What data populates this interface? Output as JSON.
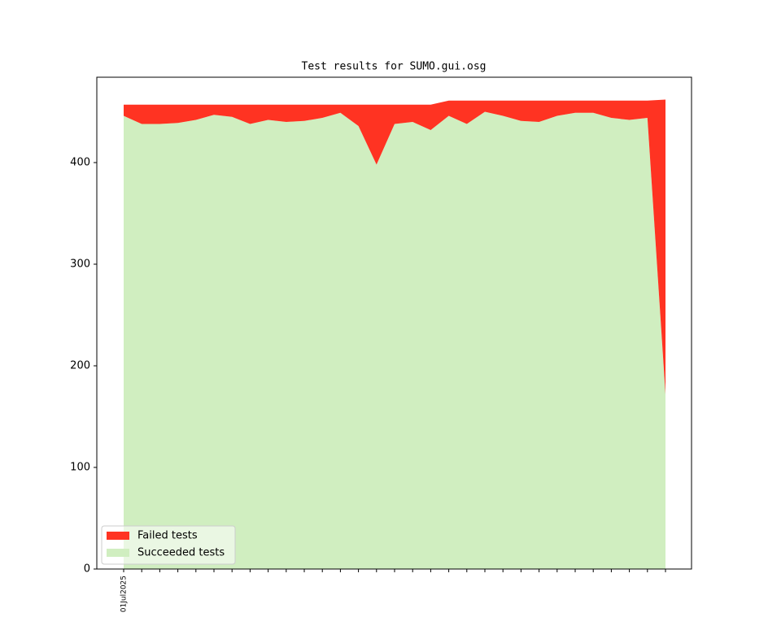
{
  "chart_data": {
    "type": "stacked_area",
    "title": "Test results for SUMO.gui.osg",
    "categories": [
      "01Jul2025",
      null,
      null,
      null,
      null,
      null,
      null,
      null,
      null,
      null,
      null,
      null,
      null,
      null,
      null,
      null,
      null,
      null,
      null,
      null,
      null,
      null,
      null,
      null,
      null,
      null,
      null,
      null,
      null,
      null,
      null
    ],
    "series": [
      {
        "name": "Succeeded tests",
        "color": "#d0eec0",
        "values": [
          446,
          438,
          438,
          439,
          442,
          447,
          445,
          438,
          442,
          440,
          441,
          444,
          449,
          436,
          398,
          438,
          440,
          432,
          446,
          438,
          450,
          446,
          441,
          440,
          446,
          449,
          449,
          444,
          442,
          444,
          172
        ]
      },
      {
        "name": "Failed tests",
        "color": "#ff3322",
        "values": [
          11,
          19,
          19,
          18,
          15,
          10,
          12,
          19,
          15,
          17,
          16,
          13,
          8,
          21,
          59,
          19,
          17,
          25,
          15,
          23,
          11,
          15,
          20,
          21,
          15,
          12,
          12,
          17,
          19,
          17,
          290
        ]
      }
    ],
    "ylim": [
      0,
      484
    ],
    "yticks": [
      0,
      100,
      200,
      300,
      400
    ],
    "legend": "lower left"
  }
}
